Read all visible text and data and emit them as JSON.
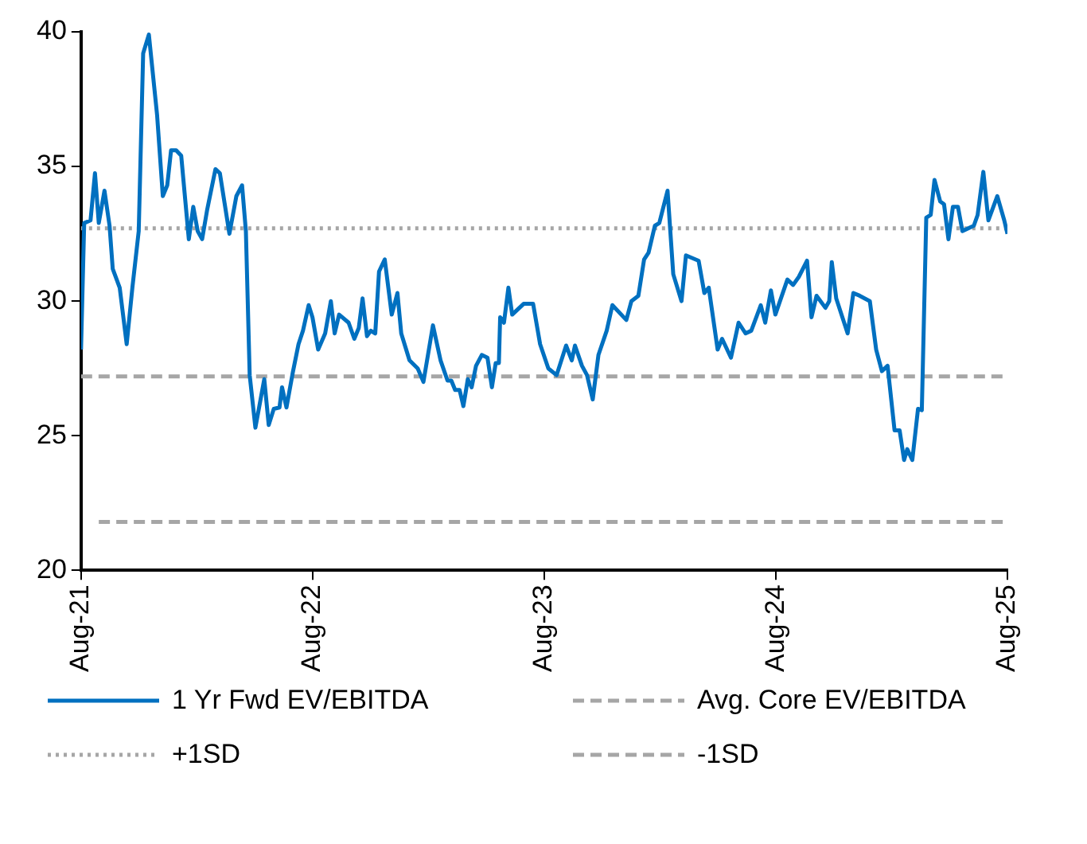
{
  "chart_data": {
    "type": "line",
    "xlim": [
      "2021-08-01",
      "2025-08-01"
    ],
    "xticks": [
      {
        "value": "2021-08",
        "label": "Aug-21"
      },
      {
        "value": "2022-08",
        "label": "Aug-22"
      },
      {
        "value": "2023-08",
        "label": "Aug-23"
      },
      {
        "value": "2024-08",
        "label": "Aug-24"
      },
      {
        "value": "2025-08",
        "label": "Aug-25"
      }
    ],
    "ylim": [
      20,
      40
    ],
    "yticks": [
      20,
      25,
      30,
      35,
      40
    ],
    "grid": false,
    "legend": "bottom",
    "marker": "none",
    "series": [
      {
        "name": "1 Yr Fwd EV/EBITDA",
        "color": "#0070c0",
        "line_style": "solid",
        "x": [
          "2021-08-01",
          "2021-08-06",
          "2021-08-16",
          "2021-08-23",
          "2021-08-29",
          "2021-09-07",
          "2021-09-15",
          "2021-09-20",
          "2021-10-01",
          "2021-10-12",
          "2021-10-21",
          "2021-10-31",
          "2021-11-07",
          "2021-11-16",
          "2021-11-29",
          "2021-12-08",
          "2021-12-15",
          "2021-12-21",
          "2021-12-29",
          "2022-01-06",
          "2022-01-18",
          "2022-01-25",
          "2022-02-01",
          "2022-02-08",
          "2022-02-16",
          "2022-03-01",
          "2022-03-08",
          "2022-03-23",
          "2022-04-03",
          "2022-04-12",
          "2022-04-18",
          "2022-04-24",
          "2022-05-03",
          "2022-05-17",
          "2022-05-24",
          "2022-06-01",
          "2022-06-10",
          "2022-06-14",
          "2022-06-21",
          "2022-07-01",
          "2022-07-10",
          "2022-07-17",
          "2022-07-26",
          "2022-08-01",
          "2022-08-10",
          "2022-08-21",
          "2022-08-30",
          "2022-09-05",
          "2022-09-12",
          "2022-09-27",
          "2022-10-06",
          "2022-10-13",
          "2022-10-19",
          "2022-10-26",
          "2022-11-01",
          "2022-11-08",
          "2022-11-14",
          "2022-11-23",
          "2022-12-04",
          "2022-12-13",
          "2022-12-19",
          "2023-01-01",
          "2023-01-14",
          "2023-01-23",
          "2023-02-07",
          "2023-02-19",
          "2023-03-02",
          "2023-03-08",
          "2023-03-14",
          "2023-03-21",
          "2023-03-27",
          "2023-04-03",
          "2023-04-09",
          "2023-04-16",
          "2023-04-25",
          "2023-05-04",
          "2023-05-11",
          "2023-05-17",
          "2023-05-22",
          "2023-05-24",
          "2023-05-30",
          "2023-06-06",
          "2023-06-12",
          "2023-06-30",
          "2023-07-15",
          "2023-07-26",
          "2023-08-08",
          "2023-08-21",
          "2023-09-05",
          "2023-09-14",
          "2023-09-19",
          "2023-09-30",
          "2023-10-08",
          "2023-10-17",
          "2023-10-26",
          "2023-11-08",
          "2023-11-17",
          "2023-12-09",
          "2023-12-17",
          "2023-12-28",
          "2024-01-06",
          "2024-01-13",
          "2024-01-23",
          "2024-01-30",
          "2024-02-12",
          "2024-02-21",
          "2024-03-05",
          "2024-03-12",
          "2024-04-01",
          "2024-04-10",
          "2024-04-17",
          "2024-05-01",
          "2024-05-08",
          "2024-05-22",
          "2024-06-03",
          "2024-06-14",
          "2024-06-23",
          "2024-07-08",
          "2024-07-15",
          "2024-07-24",
          "2024-07-31",
          "2024-08-19",
          "2024-08-28",
          "2024-09-06",
          "2024-09-19",
          "2024-09-26",
          "2024-10-04",
          "2024-10-18",
          "2024-10-24",
          "2024-10-28",
          "2024-11-04",
          "2024-11-22",
          "2024-12-01",
          "2024-12-11",
          "2024-12-27",
          "2025-01-06",
          "2025-01-15",
          "2025-01-24",
          "2025-02-04",
          "2025-02-12",
          "2025-02-19",
          "2025-02-24",
          "2025-03-04",
          "2025-03-13",
          "2025-03-19",
          "2025-03-26",
          "2025-04-02",
          "2025-04-08",
          "2025-04-17",
          "2025-04-23",
          "2025-04-30",
          "2025-05-07",
          "2025-05-15",
          "2025-05-22",
          "2025-06-09",
          "2025-06-15",
          "2025-06-24",
          "2025-07-02",
          "2025-07-16",
          "2025-07-27",
          "2025-08-01"
        ],
        "values": [
          28.2,
          32.9,
          33.0,
          34.75,
          32.9,
          34.1,
          32.8,
          31.2,
          30.5,
          28.4,
          30.5,
          32.6,
          39.2,
          39.9,
          36.9,
          33.9,
          34.3,
          35.6,
          35.6,
          35.4,
          32.3,
          33.5,
          32.6,
          32.3,
          33.4,
          34.9,
          34.75,
          32.5,
          33.9,
          34.3,
          32.6,
          27.25,
          25.3,
          27.1,
          25.4,
          26.0,
          26.05,
          26.8,
          26.05,
          27.35,
          28.4,
          28.9,
          29.85,
          29.4,
          28.2,
          28.8,
          30.0,
          28.8,
          29.5,
          29.2,
          28.6,
          29.0,
          30.1,
          28.7,
          28.9,
          28.8,
          31.1,
          31.55,
          29.5,
          30.3,
          28.8,
          27.8,
          27.5,
          27.0,
          29.1,
          27.8,
          27.05,
          27.05,
          26.7,
          26.7,
          26.1,
          27.1,
          26.8,
          27.6,
          28.0,
          27.9,
          26.8,
          27.7,
          27.7,
          29.4,
          29.2,
          30.5,
          29.5,
          29.9,
          29.9,
          28.4,
          27.5,
          27.25,
          28.35,
          27.8,
          28.35,
          27.6,
          27.25,
          26.35,
          28.0,
          28.9,
          29.85,
          29.3,
          30.0,
          30.2,
          31.55,
          31.8,
          32.8,
          32.9,
          34.1,
          31.0,
          30.0,
          31.7,
          31.5,
          30.3,
          30.5,
          28.2,
          28.6,
          27.9,
          29.2,
          28.8,
          28.9,
          29.85,
          29.2,
          30.4,
          29.5,
          30.8,
          30.6,
          30.9,
          31.5,
          29.4,
          30.2,
          29.75,
          30.0,
          31.45,
          30.1,
          28.8,
          30.3,
          30.2,
          30.0,
          28.2,
          27.4,
          27.6,
          25.2,
          25.2,
          24.1,
          24.5,
          24.1,
          26.0,
          25.95,
          33.1,
          33.2,
          34.5,
          33.7,
          33.6,
          32.3,
          33.5,
          33.5,
          32.6,
          32.8,
          33.2,
          34.8,
          33.0,
          33.9,
          33.0,
          32.5
        ]
      },
      {
        "name": "Avg. Core EV/EBITDA",
        "color": "#a6a6a6",
        "line_style": "dashed",
        "x": [
          "2021-08-01",
          "2025-08-01"
        ],
        "values": [
          27.2,
          27.2
        ]
      },
      {
        "name": "+1SD",
        "color": "#a6a6a6",
        "line_style": "dotted",
        "x": [
          "2021-08-01",
          "2025-08-01"
        ],
        "values": [
          32.7,
          32.7
        ]
      },
      {
        "name": "-1SD",
        "color": "#a6a6a6",
        "line_style": "dashed",
        "x": [
          "2021-08-29",
          "2025-08-01"
        ],
        "values": [
          21.8,
          21.8
        ]
      }
    ]
  }
}
